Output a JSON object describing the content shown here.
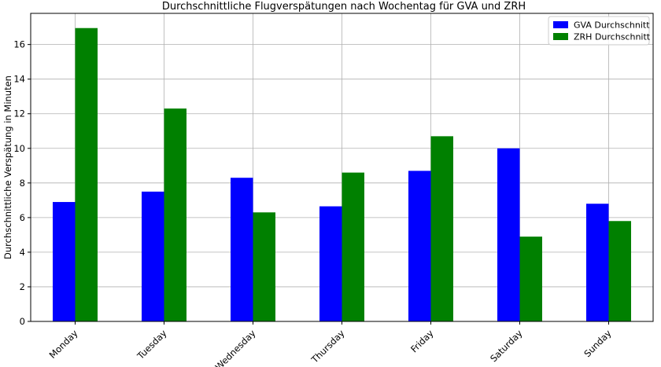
{
  "chart_data": {
    "type": "bar",
    "title": "Durchschnittliche Flugverspätungen nach Wochentag für GVA und ZRH",
    "xlabel": "",
    "ylabel": "Durchschnittliche Verspätung in Minuten",
    "categories": [
      "Monday",
      "Tuesday",
      "Wednesday",
      "Thursday",
      "Friday",
      "Saturday",
      "Sunday"
    ],
    "series": [
      {
        "name": "GVA Durchschnitt",
        "color": "#0000ff",
        "values": [
          6.9,
          7.5,
          8.3,
          6.65,
          8.7,
          10.0,
          6.8
        ]
      },
      {
        "name": "ZRH Durchschnitt",
        "color": "#008000",
        "values": [
          16.95,
          12.3,
          6.3,
          8.6,
          10.7,
          4.9,
          5.8
        ]
      }
    ],
    "ylim": [
      0,
      17.8
    ],
    "yticks": [
      0,
      2,
      4,
      6,
      8,
      10,
      12,
      14,
      16
    ],
    "grid": true,
    "legend_position": "top-right"
  }
}
